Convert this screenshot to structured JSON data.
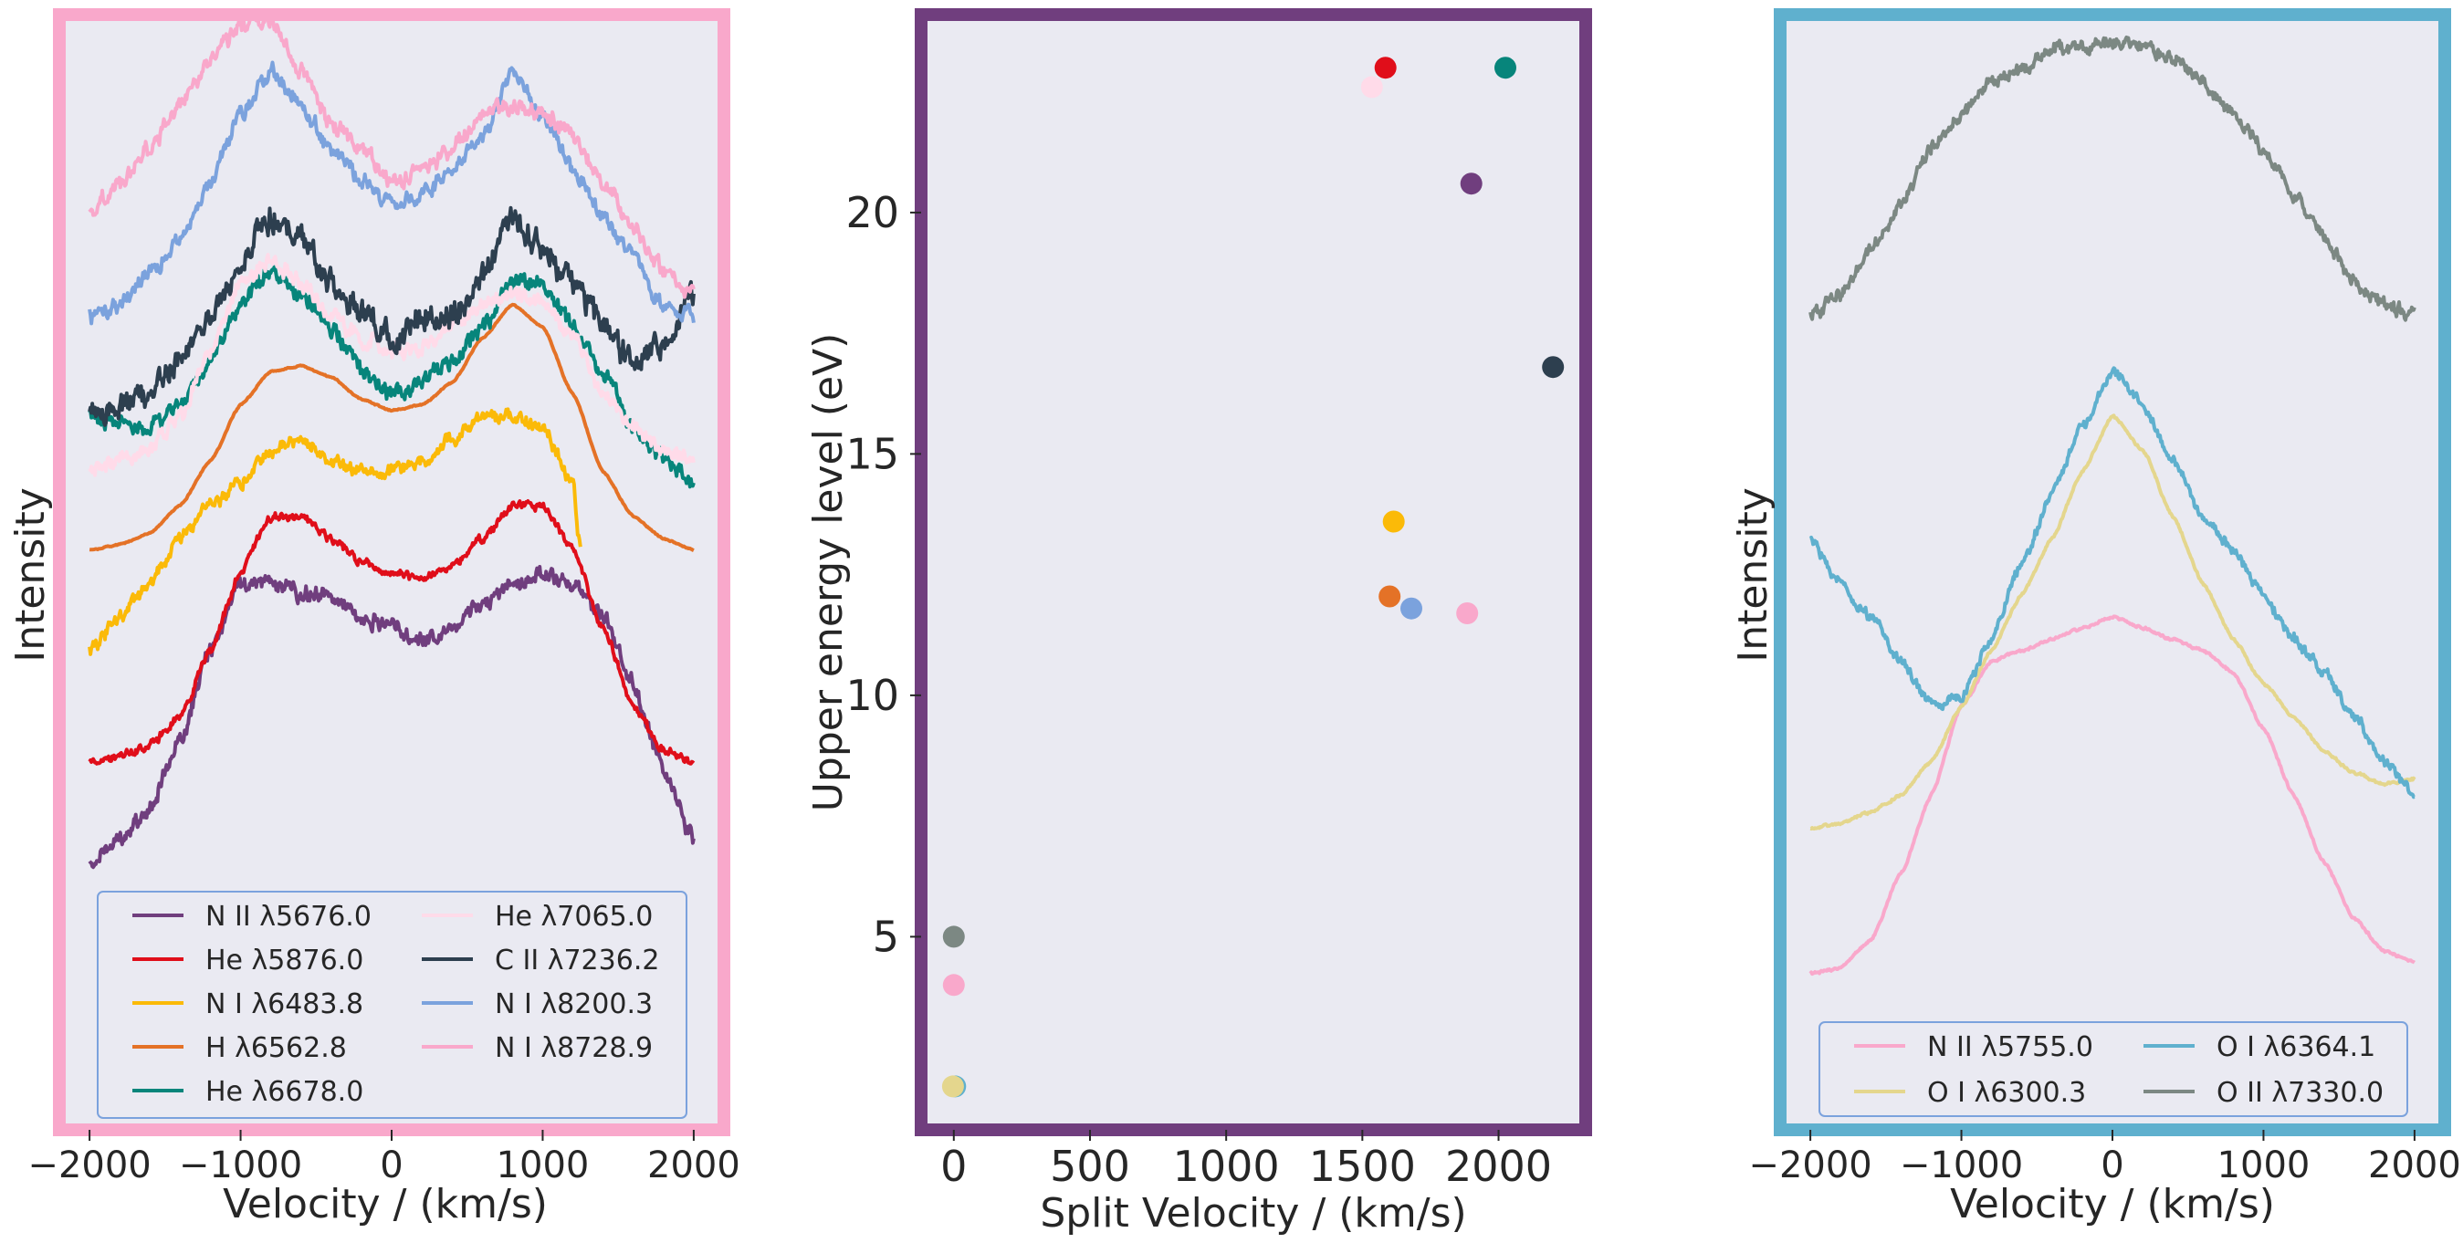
{
  "colors": {
    "plot_bg": "#eaeaf2",
    "text": "#262626",
    "legend_edge": "#7ba2dd",
    "left_frame": "#f9a8cb",
    "mid_frame": "#703e7e",
    "right_frame": "#5fb0ce"
  },
  "chart_data": [
    {
      "type": "line",
      "panel": "left",
      "xlabel": "Velocity / (km/s)",
      "ylabel": "Intensity",
      "xlim": [
        -2200,
        2200
      ],
      "ylim": [
        0,
        10
      ],
      "xticks": [
        -2000,
        -1000,
        0,
        1000,
        2000
      ],
      "xtick_labels": [
        "−2000",
        "−1000",
        "0",
        "1000",
        "2000"
      ],
      "legend_columns": 2,
      "series": [
        {
          "name": "N II λ5676.0",
          "color": "#703e7e",
          "x": [
            -2000,
            -1800,
            -1600,
            -1400,
            -1200,
            -1000,
            -800,
            -600,
            -400,
            -200,
            0,
            200,
            400,
            600,
            800,
            1000,
            1200,
            1400,
            1600,
            1800,
            2000
          ],
          "y": [
            2.4,
            2.6,
            2.9,
            3.5,
            4.3,
            4.9,
            4.9,
            4.8,
            4.8,
            4.6,
            4.5,
            4.4,
            4.5,
            4.7,
            4.9,
            5.0,
            4.9,
            4.6,
            4.0,
            3.2,
            2.6
          ],
          "noise": 0.06
        },
        {
          "name": "He λ5876.0",
          "color": "#e00e1a",
          "x": [
            -2000,
            -1800,
            -1600,
            -1400,
            -1200,
            -1000,
            -800,
            -600,
            -400,
            -200,
            0,
            200,
            400,
            600,
            800,
            1000,
            1200,
            1400,
            1600,
            1800,
            2000
          ],
          "y": [
            3.3,
            3.35,
            3.45,
            3.7,
            4.3,
            5.0,
            5.5,
            5.5,
            5.3,
            5.1,
            5.0,
            4.95,
            5.05,
            5.3,
            5.6,
            5.6,
            5.2,
            4.5,
            3.8,
            3.4,
            3.3
          ],
          "noise": 0.03
        },
        {
          "name": "N I λ6483.8",
          "color": "#fbba08",
          "x": [
            -2000,
            -1800,
            -1600,
            -1400,
            -1200,
            -1000,
            -800,
            -600,
            -400,
            -200,
            0,
            200,
            400,
            600,
            800,
            1000,
            1200,
            1250
          ],
          "y": [
            4.3,
            4.6,
            4.9,
            5.3,
            5.6,
            5.8,
            6.1,
            6.2,
            6.0,
            5.9,
            5.9,
            6.0,
            6.2,
            6.4,
            6.4,
            6.3,
            5.8,
            5.2
          ],
          "noise": 0.05
        },
        {
          "name": "H λ6562.8",
          "color": "#e47227",
          "x": [
            -2000,
            -1800,
            -1600,
            -1400,
            -1200,
            -1000,
            -800,
            -600,
            -400,
            -200,
            0,
            200,
            400,
            600,
            800,
            1000,
            1200,
            1400,
            1600,
            1800,
            2000
          ],
          "y": [
            5.2,
            5.25,
            5.35,
            5.6,
            6.0,
            6.5,
            6.8,
            6.85,
            6.75,
            6.55,
            6.45,
            6.5,
            6.7,
            7.1,
            7.4,
            7.2,
            6.6,
            5.9,
            5.5,
            5.3,
            5.2
          ],
          "noise": 0.005
        },
        {
          "name": "He λ6678.0",
          "color": "#07857b",
          "x": [
            -2000,
            -1800,
            -1600,
            -1400,
            -1200,
            -1000,
            -800,
            -600,
            -400,
            -200,
            0,
            200,
            400,
            600,
            800,
            1000,
            1200,
            1400,
            1600,
            1800,
            2000
          ],
          "y": [
            6.4,
            6.3,
            6.3,
            6.5,
            6.9,
            7.4,
            7.7,
            7.5,
            7.2,
            6.8,
            6.6,
            6.7,
            6.9,
            7.2,
            7.6,
            7.6,
            7.2,
            6.8,
            6.3,
            6.0,
            5.8
          ],
          "noise": 0.06
        },
        {
          "name": "He λ7065.0",
          "color": "#ffdbe9",
          "x": [
            -2000,
            -1800,
            -1600,
            -1400,
            -1200,
            -1000,
            -800,
            -600,
            -400,
            -200,
            0,
            200,
            400,
            600,
            800,
            1000,
            1200,
            1400,
            1600,
            1800,
            2000
          ],
          "y": [
            5.9,
            6.0,
            6.1,
            6.4,
            7.0,
            7.6,
            7.8,
            7.6,
            7.3,
            7.1,
            7.0,
            7.0,
            7.2,
            7.4,
            7.5,
            7.4,
            7.1,
            6.6,
            6.3,
            6.1,
            6.0
          ],
          "noise": 0.06
        },
        {
          "name": "C II λ7236.2",
          "color": "#2d3f4f",
          "x": [
            -2000,
            -1800,
            -1600,
            -1400,
            -1200,
            -1000,
            -800,
            -600,
            -400,
            -200,
            0,
            200,
            400,
            600,
            800,
            1000,
            1200,
            1400,
            1600,
            1800,
            2000
          ],
          "y": [
            6.4,
            6.45,
            6.6,
            6.9,
            7.3,
            7.8,
            8.2,
            8.0,
            7.6,
            7.4,
            7.1,
            7.3,
            7.3,
            7.7,
            8.2,
            7.9,
            7.6,
            7.2,
            6.9,
            7.0,
            7.5
          ],
          "noise": 0.1
        },
        {
          "name": "N I λ8200.3",
          "color": "#7ba2dd",
          "x": [
            -2000,
            -1800,
            -1600,
            -1400,
            -1200,
            -1000,
            -800,
            -600,
            -400,
            -200,
            0,
            200,
            400,
            600,
            800,
            1000,
            1200,
            1400,
            1600,
            1800,
            2000
          ],
          "y": [
            7.3,
            7.4,
            7.7,
            8.0,
            8.5,
            9.1,
            9.5,
            9.2,
            8.8,
            8.5,
            8.3,
            8.4,
            8.6,
            8.9,
            9.5,
            9.1,
            8.6,
            8.2,
            7.8,
            7.4,
            7.3
          ],
          "noise": 0.06
        },
        {
          "name": "N I λ8728.9",
          "color": "#f9a8cb",
          "x": [
            -2000,
            -1800,
            -1600,
            -1400,
            -1200,
            -1000,
            -800,
            -600,
            -400,
            -200,
            0,
            200,
            400,
            600,
            800,
            1000,
            1200,
            1400,
            1600,
            1800,
            2000
          ],
          "y": [
            8.2,
            8.5,
            8.8,
            9.2,
            9.6,
            9.9,
            9.95,
            9.5,
            9.0,
            8.8,
            8.5,
            8.6,
            8.8,
            9.1,
            9.2,
            9.1,
            8.9,
            8.5,
            8.1,
            7.7,
            7.5
          ],
          "noise": 0.06
        }
      ],
      "legend_order": [
        0,
        1,
        2,
        3,
        4,
        5,
        6,
        7,
        8
      ]
    },
    {
      "type": "scatter",
      "panel": "middle",
      "xlabel": "Split Velocity / (km/s)",
      "ylabel": "Upper energy level (eV)",
      "xlim": [
        -120,
        2320
      ],
      "ylim": [
        1.0,
        24.1
      ],
      "xticks": [
        0,
        500,
        1000,
        1500,
        2000
      ],
      "xtick_labels": [
        "0",
        "500",
        "1000",
        "1500",
        "2000"
      ],
      "yticks": [
        5,
        10,
        15,
        20
      ],
      "ytick_labels": [
        "5",
        "10",
        "15",
        "20"
      ],
      "points": [
        {
          "x": 2200,
          "y": 16.8,
          "color": "#2d3f4f"
        },
        {
          "x": 2025,
          "y": 23.0,
          "color": "#07857b"
        },
        {
          "x": 1585,
          "y": 23.0,
          "color": "#e00e1a"
        },
        {
          "x": 1900,
          "y": 20.6,
          "color": "#703e7e"
        },
        {
          "x": 1535,
          "y": 22.6,
          "color": "#ffdbe9"
        },
        {
          "x": 1615,
          "y": 13.6,
          "color": "#fbba08"
        },
        {
          "x": 1600,
          "y": 12.05,
          "color": "#e47227"
        },
        {
          "x": 1680,
          "y": 11.8,
          "color": "#7ba2dd"
        },
        {
          "x": 1885,
          "y": 11.7,
          "color": "#f9a8cb"
        },
        {
          "x": 0,
          "y": 5.0,
          "color": "#7c8883"
        },
        {
          "x": 0,
          "y": 4.0,
          "color": "#f9a8cb"
        },
        {
          "x": 5,
          "y": 1.9,
          "color": "#5fb0ce"
        },
        {
          "x": -3,
          "y": 1.9,
          "color": "#e4d68d"
        }
      ]
    },
    {
      "type": "line",
      "panel": "right",
      "xlabel": "Velocity / (km/s)",
      "ylabel": "Intensity",
      "xlim": [
        -2200,
        2200
      ],
      "ylim": [
        0,
        10
      ],
      "xticks": [
        -2000,
        -1000,
        0,
        1000,
        2000
      ],
      "xtick_labels": [
        "−2000",
        "−1000",
        "0",
        "1000",
        "2000"
      ],
      "legend_columns": 2,
      "series": [
        {
          "name": "N II λ5755.0",
          "color": "#f9a8cb",
          "x": [
            -2000,
            -1800,
            -1600,
            -1400,
            -1200,
            -1000,
            -800,
            -600,
            -400,
            -200,
            0,
            200,
            400,
            600,
            800,
            1000,
            1200,
            1400,
            1600,
            1800,
            2000
          ],
          "y": [
            1.4,
            1.45,
            1.7,
            2.3,
            3.0,
            3.8,
            4.2,
            4.3,
            4.4,
            4.5,
            4.6,
            4.5,
            4.4,
            4.3,
            4.1,
            3.6,
            3.0,
            2.4,
            1.9,
            1.6,
            1.5
          ],
          "noise": 0.01
        },
        {
          "name": "O I λ6300.3",
          "color": "#e4d68d",
          "x": [
            -2000,
            -1800,
            -1600,
            -1400,
            -1200,
            -1000,
            -800,
            -600,
            -400,
            -200,
            0,
            200,
            400,
            600,
            800,
            1000,
            1200,
            1400,
            1600,
            1800,
            2000
          ],
          "y": [
            2.7,
            2.75,
            2.85,
            3.0,
            3.3,
            3.8,
            4.3,
            4.8,
            5.3,
            5.9,
            6.4,
            6.1,
            5.5,
            4.9,
            4.4,
            4.0,
            3.7,
            3.4,
            3.2,
            3.1,
            3.15
          ],
          "noise": 0.01
        },
        {
          "name": "O I λ6364.1",
          "color": "#5fb0ce",
          "x": [
            -2000,
            -1800,
            -1600,
            -1400,
            -1200,
            -1000,
            -800,
            -600,
            -400,
            -200,
            0,
            200,
            400,
            600,
            800,
            1000,
            1200,
            1400,
            1600,
            1800,
            2000
          ],
          "y": [
            5.3,
            4.9,
            4.6,
            4.2,
            3.8,
            3.9,
            4.4,
            5.1,
            5.7,
            6.3,
            6.8,
            6.5,
            6.0,
            5.5,
            5.2,
            4.8,
            4.4,
            4.1,
            3.7,
            3.3,
            3.0
          ],
          "noise": 0.04
        },
        {
          "name": "O II λ7330.0",
          "color": "#7c8883",
          "x": [
            -2000,
            -1800,
            -1600,
            -1400,
            -1200,
            -1000,
            -800,
            -600,
            -400,
            -200,
            0,
            200,
            400,
            600,
            800,
            1000,
            1200,
            1400,
            1600,
            1800,
            2000
          ],
          "y": [
            7.3,
            7.5,
            7.9,
            8.3,
            8.8,
            9.1,
            9.4,
            9.5,
            9.7,
            9.7,
            9.75,
            9.7,
            9.6,
            9.4,
            9.1,
            8.8,
            8.4,
            8.0,
            7.6,
            7.4,
            7.3
          ],
          "noise": 0.05
        }
      ],
      "legend_order": [
        0,
        1,
        2,
        3
      ]
    }
  ]
}
